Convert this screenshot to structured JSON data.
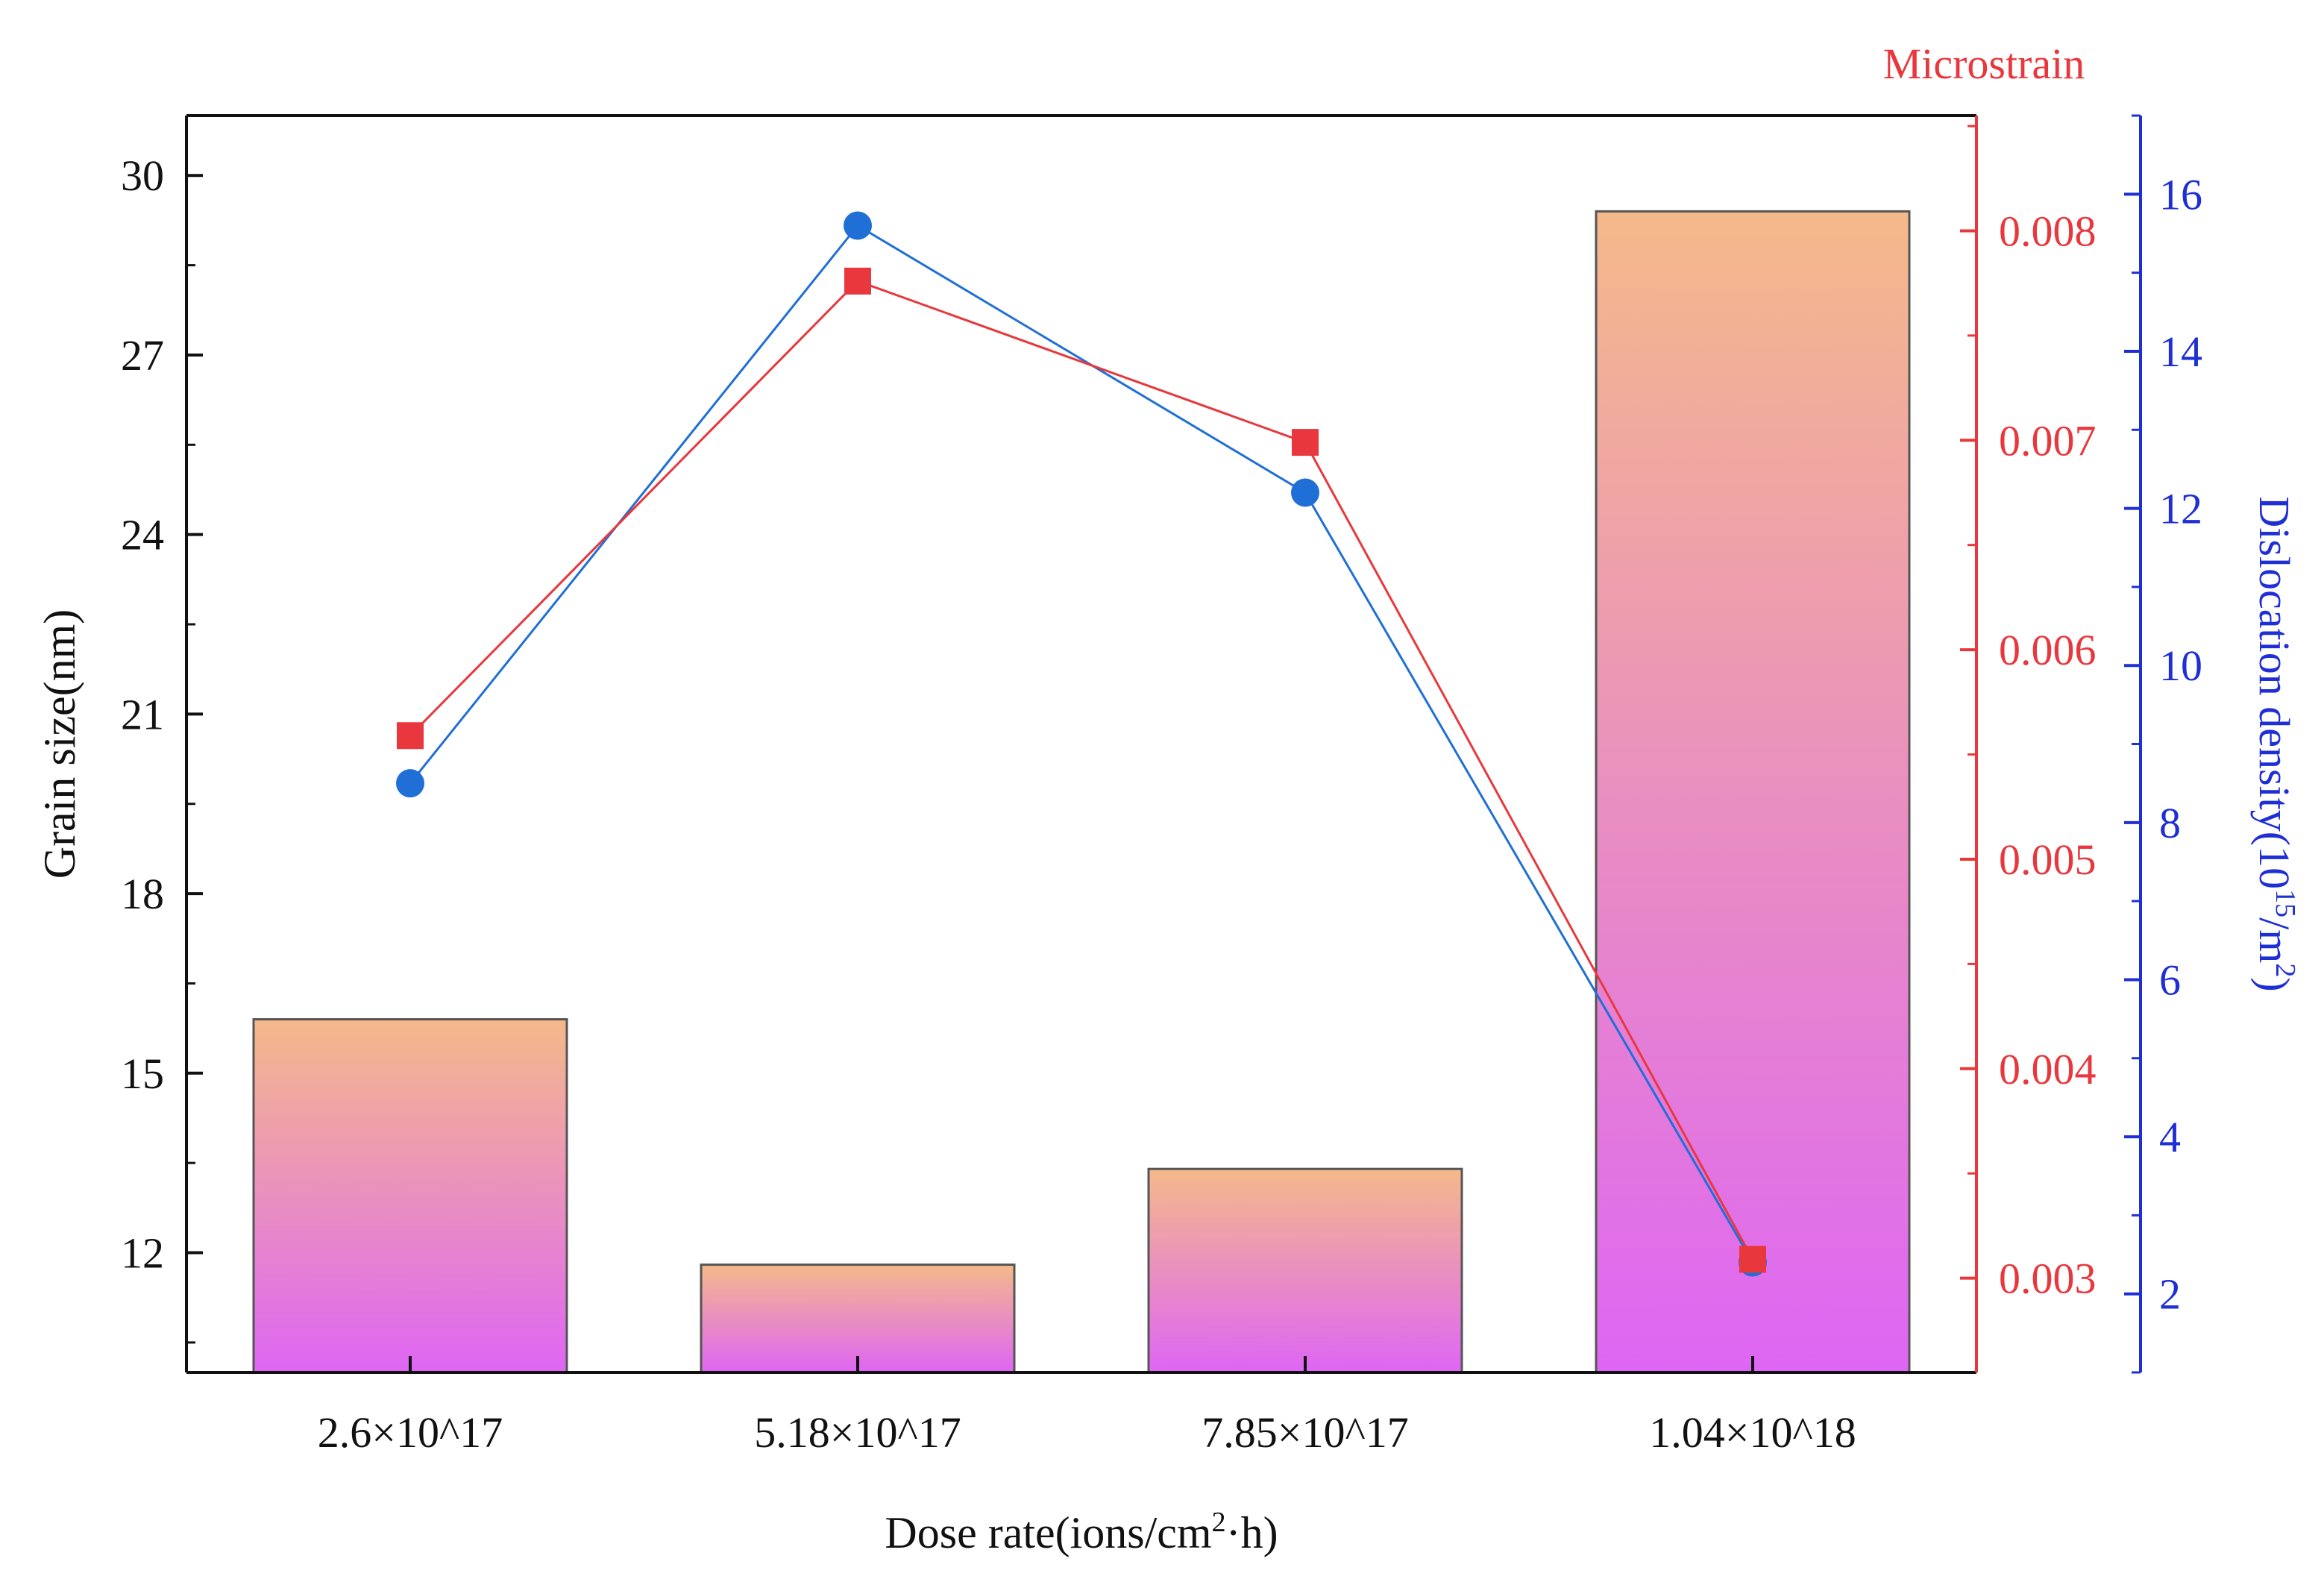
{
  "chart_data": {
    "type": "bar",
    "categories": [
      "2.6×10^17",
      "5.18×10^17",
      "7.85×10^17",
      "1.04×10^18"
    ],
    "xlabel": "Dose rate(ions/cm²·h)",
    "xlabel_parts": {
      "pre": "Dose rate(ions/cm",
      "sup": "2",
      "post": "·h)"
    },
    "series": [
      {
        "name": "Grain size",
        "type": "bar",
        "axis": "left",
        "values": [
          15.9,
          11.8,
          13.4,
          29.4
        ]
      },
      {
        "name": "Microstrain",
        "type": "line",
        "axis": "right1",
        "marker": "square",
        "color": "#e8383d",
        "values": [
          0.00559,
          0.00776,
          0.00699,
          0.00309
        ]
      },
      {
        "name": "Dislocation density",
        "type": "line",
        "axis": "right2",
        "marker": "circle",
        "color": "#1f6fd6",
        "values": [
          8.5,
          15.6,
          12.2,
          2.4
        ]
      }
    ],
    "axes": {
      "left": {
        "label": "Grain size(nm)",
        "ylim": [
          10,
          31
        ],
        "ticks": [
          "12",
          "15",
          "18",
          "21",
          "24",
          "27",
          "30"
        ]
      },
      "right1": {
        "label": "Microstrain",
        "ylim": [
          0.00255,
          0.00855
        ],
        "ticks": [
          "0.003",
          "0.004",
          "0.005",
          "0.006",
          "0.007",
          "0.008"
        ],
        "color": "#e8383d"
      },
      "right2": {
        "label_parts": {
          "pre": "Dislocation density(10",
          "sup1": "15",
          "mid": "/m",
          "sup2": "2",
          "post": ")"
        },
        "label": "Dislocation density(10^15/m^2)",
        "ylim": [
          1,
          17
        ],
        "ticks": [
          "2",
          "4",
          "6",
          "8",
          "10",
          "12",
          "14",
          "16"
        ],
        "color": "#1f2fd6"
      }
    },
    "bar_gradient": {
      "top": "#f5b98a",
      "bottom": "#de66f4"
    }
  }
}
